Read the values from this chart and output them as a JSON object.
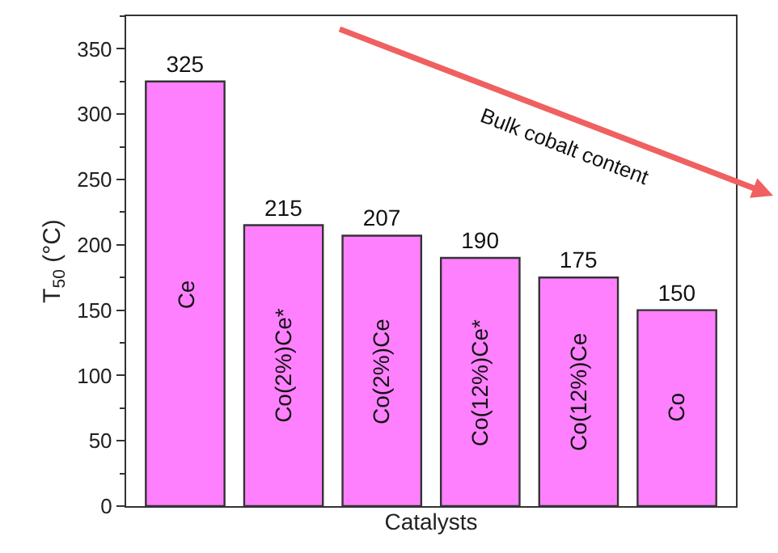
{
  "chart_data": {
    "type": "bar",
    "xlabel": "Catalysts",
    "ylabel": "T$_{50}$ (°C)",
    "categories": [
      "Ce",
      "Co(2%)Ce*",
      "Co(2%)Ce",
      "Co(12%)Ce*",
      "Co(12%)Ce",
      "Co"
    ],
    "values": [
      325,
      215,
      207,
      190,
      175,
      150
    ],
    "color": "#ff80ff",
    "ylim": [
      0,
      375
    ],
    "yticks": [
      0,
      50,
      100,
      150,
      200,
      250,
      300,
      350
    ],
    "data_labels": true,
    "legend": false,
    "tick_labels": "y",
    "annotations": [
      "Bulk cobalt content"
    ]
  }
}
